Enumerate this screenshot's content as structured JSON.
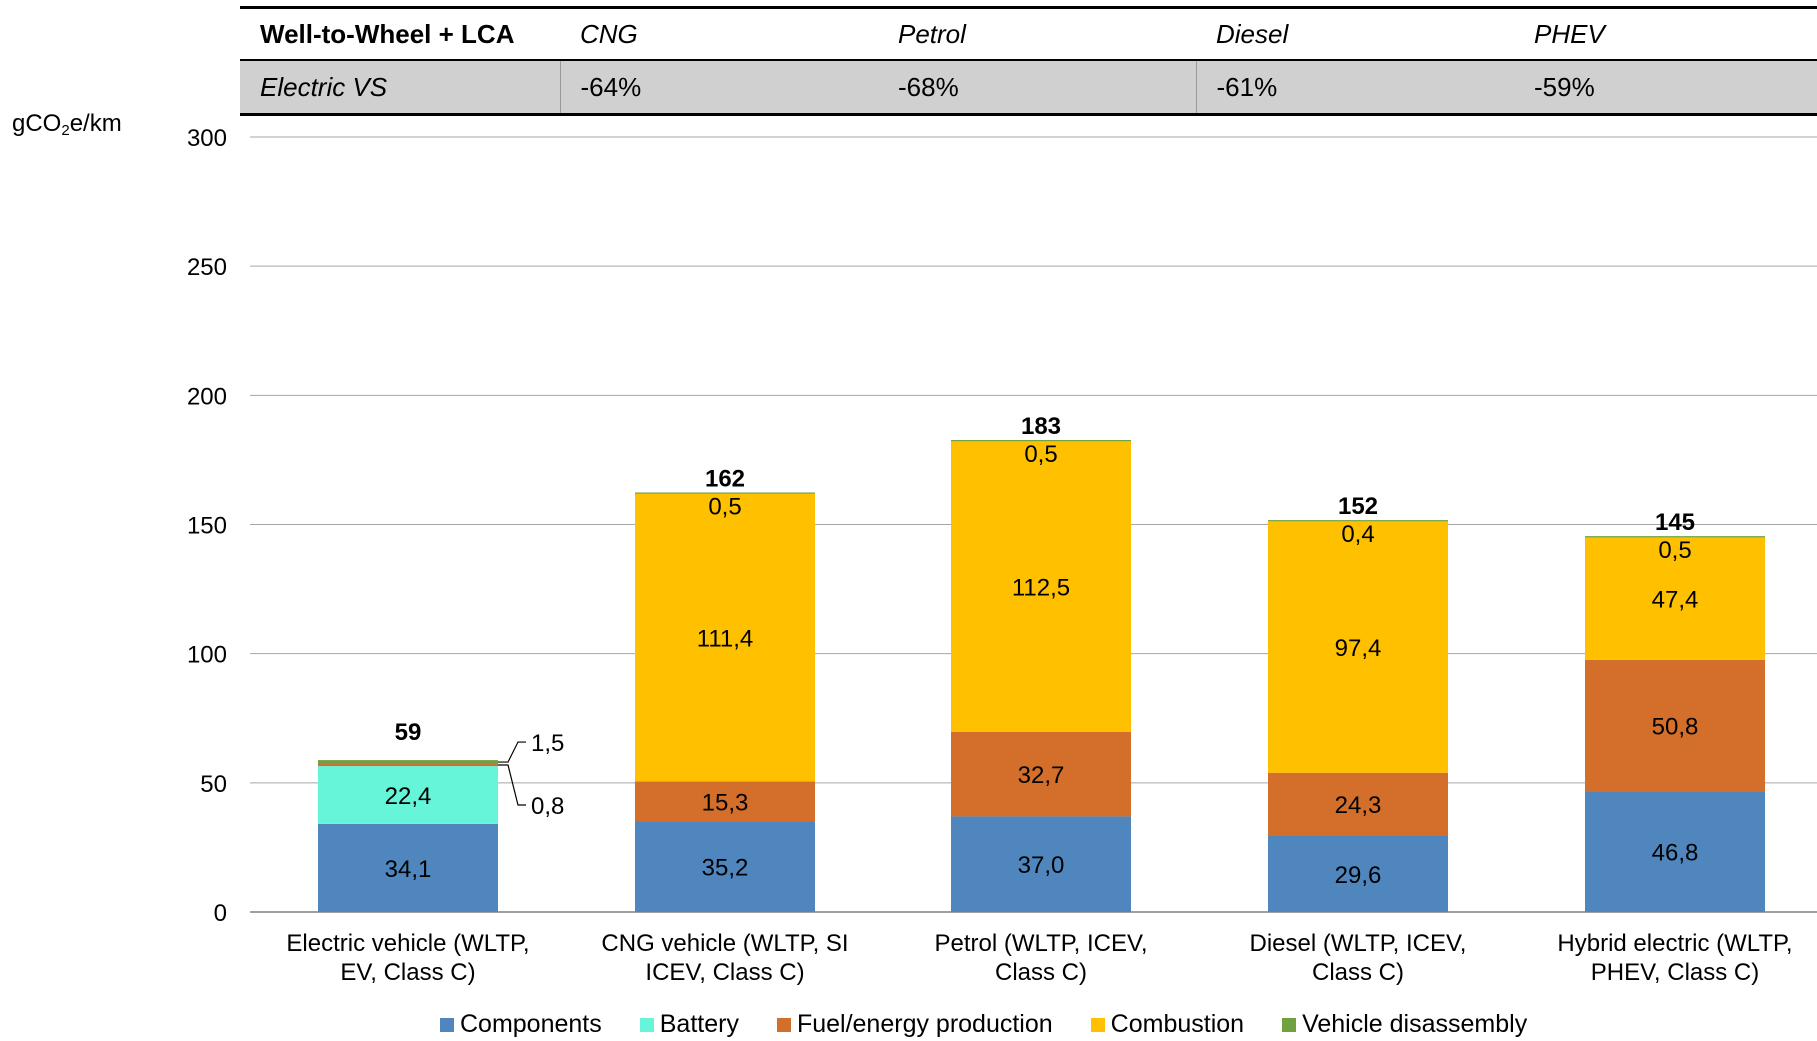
{
  "comparison_table": {
    "header": {
      "label": "Well-to-Wheel + LCA",
      "columns": [
        "CNG",
        "Petrol",
        "Diesel",
        "PHEV"
      ]
    },
    "row": {
      "label": "Electric VS",
      "values": [
        "-64%",
        "-68%",
        "-61%",
        "-59%"
      ]
    }
  },
  "chart_data": {
    "type": "bar",
    "stacked": true,
    "ylabel": "gCO2e/km",
    "ylim": [
      0,
      300
    ],
    "yticks": [
      0,
      50,
      100,
      150,
      200,
      250,
      300
    ],
    "grid": true,
    "legend_position": "bottom",
    "categories": [
      [
        "Electric vehicle (WLTP,",
        "EV, Class C)"
      ],
      [
        "CNG vehicle (WLTP, SI",
        "ICEV, Class C)"
      ],
      [
        "Petrol (WLTP, ICEV,",
        "Class C)"
      ],
      [
        "Diesel (WLTP, ICEV,",
        "Class C)"
      ],
      [
        "Hybrid electric (WLTP,",
        "PHEV, Class C)"
      ]
    ],
    "series": [
      {
        "name": "Components",
        "color": "#4f86bd",
        "values": [
          34.1,
          35.2,
          37.0,
          29.6,
          46.8
        ],
        "labels": [
          "34,1",
          "35,2",
          "37,0",
          "29,6",
          "46,8"
        ]
      },
      {
        "name": "Battery",
        "color": "#66f5d9",
        "values": [
          22.4,
          0,
          0,
          0,
          0
        ],
        "labels": [
          "22,4",
          "",
          "",
          "",
          ""
        ]
      },
      {
        "name": "Fuel/energy production",
        "color": "#d46f2b",
        "values": [
          0.8,
          15.3,
          32.7,
          24.3,
          50.8
        ],
        "labels": [
          "0,8",
          "15,3",
          "32,7",
          "24,3",
          "50,8"
        ]
      },
      {
        "name": "Combustion",
        "color": "#ffc000",
        "values": [
          0,
          111.4,
          112.5,
          97.4,
          47.4
        ],
        "labels": [
          "",
          "111,4",
          "112,5",
          "97,4",
          "47,4"
        ]
      },
      {
        "name": "Vehicle disassembly",
        "color": "#70a040",
        "values": [
          1.5,
          0.5,
          0.5,
          0.4,
          0.5
        ],
        "labels": [
          "1,5",
          "0,5",
          "0,5",
          "0,4",
          "0,5"
        ]
      }
    ],
    "totals": [
      "59",
      "162",
      "183",
      "152",
      "145"
    ]
  }
}
